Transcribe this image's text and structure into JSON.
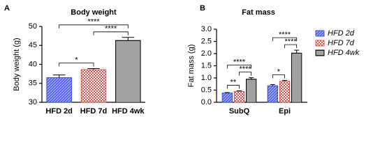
{
  "chart_data": [
    {
      "type": "bar",
      "panel": "A",
      "title": "Body weight",
      "ylabel": "Body weight (g)",
      "categories": [
        "HFD 2d",
        "HFD 7d",
        "HFD 4wk"
      ],
      "values": [
        36.5,
        38.6,
        46.3
      ],
      "errors": [
        0.7,
        0.3,
        0.8
      ],
      "colors": [
        "#3b4fd8",
        "#e0504a",
        "#444444"
      ],
      "ylim": [
        30,
        50
      ],
      "yticks": [
        30,
        35,
        40,
        45,
        50
      ],
      "annotations": [
        {
          "text": "*",
          "from": 0,
          "to": 1
        },
        {
          "text": "****",
          "from": 1,
          "to": 2
        },
        {
          "text": "****",
          "from": 0,
          "to": 2
        }
      ]
    },
    {
      "type": "bar",
      "panel": "B",
      "title": "Fat mass",
      "ylabel": "Fat mass (g)",
      "categories": [
        "SubQ",
        "Epi"
      ],
      "series": [
        {
          "name": "HFD 2d",
          "color": "#3b4fd8",
          "values": [
            0.38,
            0.68
          ],
          "errors": [
            0.02,
            0.05
          ]
        },
        {
          "name": "HFD 7d",
          "color": "#e0504a",
          "values": [
            0.45,
            0.86
          ],
          "errors": [
            0.02,
            0.04
          ]
        },
        {
          "name": "HFD 4wk",
          "color": "#444444",
          "values": [
            0.95,
            2.02
          ],
          "errors": [
            0.06,
            0.12
          ]
        }
      ],
      "ylim": [
        0,
        3
      ],
      "yticks": [
        {
          "value": 0,
          "label": "0.0"
        },
        {
          "value": 0.5,
          "label": "0.5"
        },
        {
          "value": 1,
          "label": "1.0"
        },
        {
          "value": 1.5,
          "label": "1.5"
        },
        {
          "value": 2,
          "label": "2.0"
        },
        {
          "value": 2.5,
          "label": "2.5"
        },
        {
          "value": 3,
          "label": "3.0"
        }
      ],
      "legend": "right",
      "annotations": [
        {
          "text": "**",
          "group": 0,
          "from": 0,
          "to": 1
        },
        {
          "text": "****",
          "group": 0,
          "from": 1,
          "to": 2
        },
        {
          "text": "****",
          "group": 0,
          "from": 0,
          "to": 2
        },
        {
          "text": "*",
          "group": 1,
          "from": 0,
          "to": 1
        },
        {
          "text": "****",
          "group": 1,
          "from": 1,
          "to": 2
        },
        {
          "text": "****",
          "group": 1,
          "from": 0,
          "to": 2
        }
      ]
    }
  ]
}
